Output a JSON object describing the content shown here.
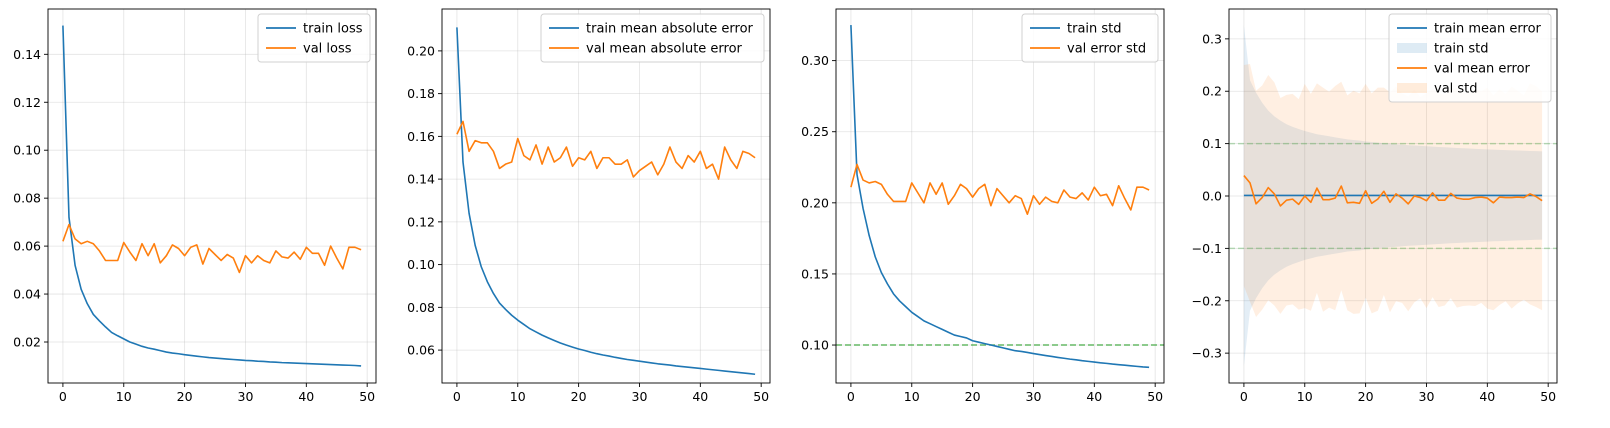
{
  "colors": {
    "blue": "#1f77b4",
    "orange": "#ff7f0e",
    "green": "#2ca02c",
    "grid": "#b0b0b0",
    "train_std_fill": "#1f77b4",
    "val_std_fill": "#ff7f0e"
  },
  "chart_data": [
    {
      "type": "line",
      "xlim": [
        -2.45,
        51.45
      ],
      "ylim": [
        0.0029,
        0.1589
      ],
      "x_ticks": [
        0,
        10,
        20,
        30,
        40,
        50
      ],
      "y_ticks": [
        0.02,
        0.04,
        0.06,
        0.08,
        0.1,
        0.12,
        0.14
      ],
      "y_tick_labels": [
        "0.02",
        "0.04",
        "0.06",
        "0.08",
        "0.10",
        "0.12",
        "0.14"
      ],
      "x_tick_labels": [
        "0",
        "10",
        "20",
        "30",
        "40",
        "50"
      ],
      "grid": true,
      "legend_position": "top-right",
      "series": [
        {
          "name": "train loss",
          "color": "blue",
          "values": [
            0.152,
            0.072,
            0.052,
            0.042,
            0.036,
            0.0315,
            0.0288,
            0.0263,
            0.024,
            0.0226,
            0.0213,
            0.02,
            0.0191,
            0.0182,
            0.0175,
            0.017,
            0.0164,
            0.0158,
            0.0154,
            0.0151,
            0.0147,
            0.0144,
            0.0141,
            0.0138,
            0.0135,
            0.0133,
            0.0131,
            0.0129,
            0.0127,
            0.0125,
            0.0123,
            0.0122,
            0.012,
            0.0119,
            0.0117,
            0.0116,
            0.0114,
            0.0113,
            0.0112,
            0.0111,
            0.011,
            0.0109,
            0.0108,
            0.0107,
            0.0106,
            0.0105,
            0.0104,
            0.0103,
            0.0102,
            0.01
          ]
        },
        {
          "name": "val loss",
          "color": "orange",
          "values": [
            0.062,
            0.069,
            0.063,
            0.061,
            0.062,
            0.061,
            0.058,
            0.054,
            0.054,
            0.054,
            0.0615,
            0.0575,
            0.054,
            0.061,
            0.056,
            0.061,
            0.053,
            0.056,
            0.0605,
            0.059,
            0.056,
            0.0595,
            0.0605,
            0.0525,
            0.059,
            0.0565,
            0.054,
            0.0565,
            0.055,
            0.049,
            0.056,
            0.053,
            0.056,
            0.054,
            0.053,
            0.058,
            0.0555,
            0.055,
            0.0575,
            0.0545,
            0.0595,
            0.057,
            0.057,
            0.052,
            0.06,
            0.055,
            0.0505,
            0.0595,
            0.0595,
            0.0585
          ]
        }
      ]
    },
    {
      "type": "line",
      "xlim": [
        -2.45,
        51.45
      ],
      "ylim": [
        0.0446,
        0.2196
      ],
      "x_ticks": [
        0,
        10,
        20,
        30,
        40,
        50
      ],
      "y_ticks": [
        0.06,
        0.08,
        0.1,
        0.12,
        0.14,
        0.16,
        0.18,
        0.2
      ],
      "y_tick_labels": [
        "0.06",
        "0.08",
        "0.10",
        "0.12",
        "0.14",
        "0.16",
        "0.18",
        "0.20"
      ],
      "x_tick_labels": [
        "0",
        "10",
        "20",
        "30",
        "40",
        "50"
      ],
      "grid": true,
      "legend_position": "top-right",
      "series": [
        {
          "name": "train mean absolute error",
          "color": "blue",
          "values": [
            0.211,
            0.148,
            0.124,
            0.109,
            0.099,
            0.092,
            0.0865,
            0.082,
            0.079,
            0.0763,
            0.074,
            0.072,
            0.07,
            0.0685,
            0.067,
            0.0657,
            0.0645,
            0.0633,
            0.0623,
            0.0614,
            0.0605,
            0.0598,
            0.059,
            0.0583,
            0.0577,
            0.0572,
            0.0566,
            0.0561,
            0.0556,
            0.0552,
            0.0548,
            0.0544,
            0.054,
            0.0536,
            0.0533,
            0.053,
            0.0526,
            0.0523,
            0.052,
            0.0517,
            0.0514,
            0.0511,
            0.0508,
            0.0505,
            0.0502,
            0.0499,
            0.0496,
            0.0493,
            0.049,
            0.0487
          ]
        },
        {
          "name": "val mean absolute error",
          "color": "orange",
          "values": [
            0.161,
            0.167,
            0.153,
            0.158,
            0.157,
            0.157,
            0.153,
            0.145,
            0.147,
            0.148,
            0.159,
            0.151,
            0.149,
            0.156,
            0.147,
            0.155,
            0.148,
            0.15,
            0.155,
            0.146,
            0.15,
            0.149,
            0.153,
            0.145,
            0.15,
            0.15,
            0.147,
            0.147,
            0.149,
            0.141,
            0.144,
            0.146,
            0.148,
            0.142,
            0.147,
            0.155,
            0.148,
            0.145,
            0.151,
            0.148,
            0.153,
            0.145,
            0.147,
            0.14,
            0.155,
            0.149,
            0.145,
            0.153,
            0.152,
            0.15
          ]
        }
      ]
    },
    {
      "type": "line",
      "xlim": [
        -2.45,
        51.45
      ],
      "ylim": [
        0.0733,
        0.3363
      ],
      "x_ticks": [
        0,
        10,
        20,
        30,
        40,
        50
      ],
      "y_ticks": [
        0.1,
        0.15,
        0.2,
        0.25,
        0.3
      ],
      "y_tick_labels": [
        "0.10",
        "0.15",
        "0.20",
        "0.25",
        "0.30"
      ],
      "x_tick_labels": [
        "0",
        "10",
        "20",
        "30",
        "40",
        "50"
      ],
      "grid": true,
      "legend_position": "top-right",
      "reference_line": {
        "y": 0.1,
        "color": "green",
        "style": "dashed"
      },
      "series": [
        {
          "name": "train std",
          "color": "blue",
          "values": [
            0.325,
            0.22,
            0.196,
            0.177,
            0.162,
            0.151,
            0.143,
            0.136,
            0.131,
            0.127,
            0.123,
            0.12,
            0.117,
            0.115,
            0.113,
            0.111,
            0.109,
            0.107,
            0.106,
            0.105,
            0.103,
            0.102,
            0.101,
            0.1,
            0.099,
            0.098,
            0.097,
            0.096,
            0.0955,
            0.0948,
            0.094,
            0.0933,
            0.0926,
            0.092,
            0.0913,
            0.0907,
            0.0901,
            0.0896,
            0.089,
            0.0885,
            0.088,
            0.0875,
            0.0871,
            0.0866,
            0.0862,
            0.0858,
            0.0854,
            0.085,
            0.0846,
            0.0843
          ]
        },
        {
          "name": "val error std",
          "color": "orange",
          "values": [
            0.211,
            0.227,
            0.216,
            0.214,
            0.215,
            0.213,
            0.206,
            0.201,
            0.201,
            0.201,
            0.214,
            0.207,
            0.2,
            0.214,
            0.206,
            0.214,
            0.199,
            0.205,
            0.213,
            0.21,
            0.204,
            0.21,
            0.213,
            0.198,
            0.21,
            0.205,
            0.2,
            0.205,
            0.203,
            0.192,
            0.205,
            0.199,
            0.204,
            0.201,
            0.2,
            0.209,
            0.204,
            0.203,
            0.207,
            0.202,
            0.211,
            0.205,
            0.206,
            0.198,
            0.212,
            0.203,
            0.195,
            0.211,
            0.211,
            0.209
          ]
        }
      ]
    },
    {
      "type": "area",
      "xlim": [
        -2.45,
        51.45
      ],
      "ylim": [
        -0.357,
        0.357
      ],
      "x_ticks": [
        0,
        10,
        20,
        30,
        40,
        50
      ],
      "y_ticks": [
        -0.3,
        -0.2,
        -0.1,
        0.0,
        0.1,
        0.2,
        0.3
      ],
      "y_tick_labels": [
        "−0.3",
        "−0.2",
        "−0.1",
        "0.0",
        "0.1",
        "0.2",
        "0.3"
      ],
      "x_tick_labels": [
        "0",
        "10",
        "20",
        "30",
        "40",
        "50"
      ],
      "grid": true,
      "legend_position": "top-right",
      "reference_lines": [
        {
          "y": 0.1,
          "color": "green",
          "style": "dashed"
        },
        {
          "y": -0.1,
          "color": "green",
          "style": "dashed"
        }
      ],
      "series": [
        {
          "name": "train mean error",
          "color": "blue",
          "kind": "line",
          "values": [
            0.001,
            0.001,
            0.001,
            0.001,
            0.001,
            0.001,
            0.001,
            0.001,
            0.001,
            0.001,
            0.001,
            0.001,
            0.001,
            0.001,
            0.001,
            0.001,
            0.001,
            0.001,
            0.001,
            0.001,
            0.001,
            0.001,
            0.001,
            0.001,
            0.001,
            0.001,
            0.001,
            0.001,
            0.001,
            0.001,
            0.001,
            0.001,
            0.001,
            0.001,
            0.001,
            0.001,
            0.001,
            0.001,
            0.001,
            0.001,
            0.001,
            0.001,
            0.001,
            0.001,
            0.001,
            0.001,
            0.001,
            0.001,
            0.001,
            0.001
          ]
        },
        {
          "name": "train std",
          "color": "train_std_fill",
          "kind": "band",
          "values": [
            0.325,
            0.22,
            0.196,
            0.177,
            0.162,
            0.151,
            0.143,
            0.136,
            0.131,
            0.127,
            0.123,
            0.12,
            0.117,
            0.115,
            0.113,
            0.111,
            0.109,
            0.107,
            0.106,
            0.105,
            0.103,
            0.102,
            0.101,
            0.1,
            0.099,
            0.098,
            0.097,
            0.096,
            0.0955,
            0.0948,
            0.094,
            0.0933,
            0.0926,
            0.092,
            0.0913,
            0.0907,
            0.0901,
            0.0896,
            0.089,
            0.0885,
            0.088,
            0.0875,
            0.0871,
            0.0866,
            0.0862,
            0.0858,
            0.0854,
            0.085,
            0.0846,
            0.0843
          ]
        },
        {
          "name": "val mean error",
          "color": "orange",
          "kind": "line",
          "values": [
            0.039,
            0.025,
            -0.015,
            -0.003,
            0.016,
            0.004,
            -0.019,
            -0.008,
            -0.006,
            -0.016,
            0.0,
            -0.012,
            0.015,
            -0.007,
            -0.007,
            -0.004,
            0.019,
            -0.013,
            -0.012,
            -0.014,
            0.01,
            -0.014,
            -0.006,
            0.009,
            -0.012,
            0.004,
            -0.004,
            -0.015,
            0.0,
            -0.003,
            -0.009,
            0.006,
            -0.008,
            -0.008,
            0.005,
            -0.004,
            -0.006,
            -0.006,
            -0.003,
            -0.002,
            -0.004,
            -0.013,
            -0.002,
            -0.003,
            -0.003,
            -0.002,
            -0.003,
            0.004,
            -0.001,
            -0.009
          ]
        },
        {
          "name": "val std",
          "color": "val_std_fill",
          "kind": "band",
          "values": [
            0.211,
            0.227,
            0.216,
            0.214,
            0.215,
            0.213,
            0.206,
            0.201,
            0.201,
            0.201,
            0.214,
            0.207,
            0.2,
            0.214,
            0.206,
            0.214,
            0.199,
            0.205,
            0.213,
            0.21,
            0.204,
            0.21,
            0.213,
            0.198,
            0.21,
            0.205,
            0.2,
            0.205,
            0.203,
            0.192,
            0.205,
            0.199,
            0.204,
            0.201,
            0.2,
            0.209,
            0.204,
            0.203,
            0.207,
            0.202,
            0.211,
            0.205,
            0.206,
            0.198,
            0.212,
            0.203,
            0.195,
            0.211,
            0.211,
            0.209
          ]
        }
      ]
    }
  ]
}
